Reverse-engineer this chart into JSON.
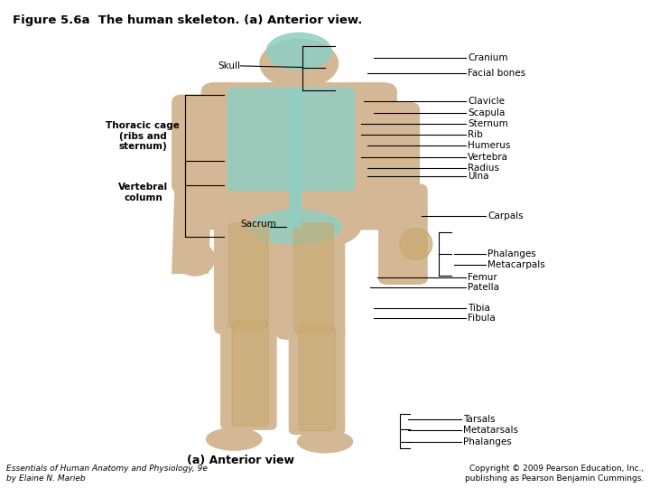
{
  "title": "Figure 5.6a  The human skeleton. (a) Anterior view.",
  "title_fontsize": 9.5,
  "title_fontweight": "bold",
  "background_color": "#ffffff",
  "caption": "(a) Anterior view",
  "footer_left": "Essentials of Human Anatomy and Physiology, 9e\nby Elaine N. Marieb",
  "footer_right": "Copyright © 2009 Pearson Education, Inc.,\npublishing as Pearson Benjamin Cummings.",
  "body_color": "#D4B896",
  "bone_teal": "#8ECFC4",
  "bone_tan": "#C8A96E",
  "label_fontsize": 7.5,
  "line_color": "#000000",
  "right_labels": [
    {
      "text": "Cranium",
      "pt": [
        0.575,
        0.882
      ],
      "txt": [
        0.715,
        0.882
      ]
    },
    {
      "text": "Facial bones",
      "pt": [
        0.565,
        0.85
      ],
      "txt": [
        0.715,
        0.85
      ]
    },
    {
      "text": "Clavicle",
      "pt": [
        0.56,
        0.793
      ],
      "txt": [
        0.715,
        0.793
      ]
    },
    {
      "text": "Scapula",
      "pt": [
        0.575,
        0.768
      ],
      "txt": [
        0.715,
        0.768
      ]
    },
    {
      "text": "Sternum",
      "pt": [
        0.555,
        0.746
      ],
      "txt": [
        0.715,
        0.746
      ]
    },
    {
      "text": "Rib",
      "pt": [
        0.555,
        0.724
      ],
      "txt": [
        0.715,
        0.724
      ]
    },
    {
      "text": "Humerus",
      "pt": [
        0.565,
        0.701
      ],
      "txt": [
        0.715,
        0.701
      ]
    },
    {
      "text": "Vertebra",
      "pt": [
        0.555,
        0.677
      ],
      "txt": [
        0.715,
        0.677
      ]
    },
    {
      "text": "Radius",
      "pt": [
        0.565,
        0.656
      ],
      "txt": [
        0.715,
        0.656
      ]
    },
    {
      "text": "Ulna",
      "pt": [
        0.565,
        0.638
      ],
      "txt": [
        0.715,
        0.638
      ]
    },
    {
      "text": "Carpals",
      "pt": [
        0.648,
        0.557
      ],
      "txt": [
        0.745,
        0.557
      ]
    },
    {
      "text": "Phalanges",
      "pt": [
        0.698,
        0.48
      ],
      "txt": [
        0.745,
        0.48
      ]
    },
    {
      "text": "Metacarpals",
      "pt": [
        0.698,
        0.457
      ],
      "txt": [
        0.745,
        0.457
      ]
    },
    {
      "text": "Femur",
      "pt": [
        0.58,
        0.432
      ],
      "txt": [
        0.715,
        0.432
      ]
    },
    {
      "text": "Patella",
      "pt": [
        0.57,
        0.412
      ],
      "txt": [
        0.715,
        0.412
      ]
    },
    {
      "text": "Tibia",
      "pt": [
        0.575,
        0.369
      ],
      "txt": [
        0.715,
        0.369
      ]
    },
    {
      "text": "Fibula",
      "pt": [
        0.575,
        0.348
      ],
      "txt": [
        0.715,
        0.348
      ]
    },
    {
      "text": "Tarsals",
      "pt": [
        0.628,
        0.14
      ],
      "txt": [
        0.708,
        0.14
      ]
    },
    {
      "text": "Metatarsals",
      "pt": [
        0.628,
        0.118
      ],
      "txt": [
        0.708,
        0.118
      ]
    },
    {
      "text": "Phalanges",
      "pt": [
        0.628,
        0.095
      ],
      "txt": [
        0.708,
        0.095
      ]
    }
  ]
}
